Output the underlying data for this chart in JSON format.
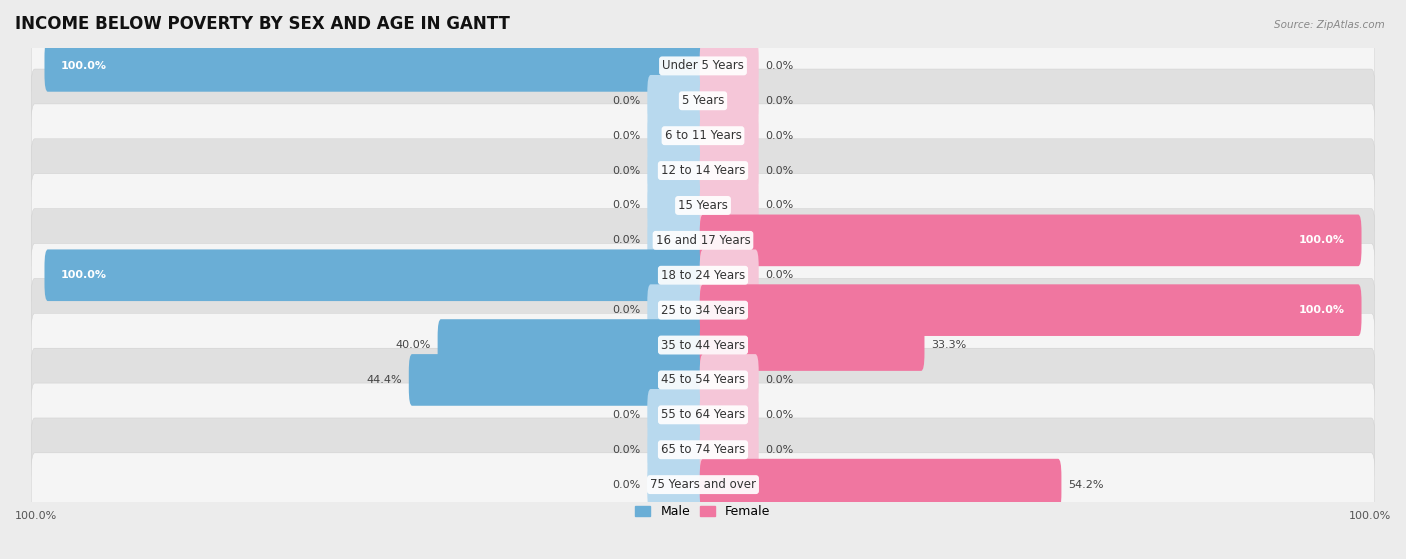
{
  "title": "INCOME BELOW POVERTY BY SEX AND AGE IN GANTT",
  "source": "Source: ZipAtlas.com",
  "categories": [
    "Under 5 Years",
    "5 Years",
    "6 to 11 Years",
    "12 to 14 Years",
    "15 Years",
    "16 and 17 Years",
    "18 to 24 Years",
    "25 to 34 Years",
    "35 to 44 Years",
    "45 to 54 Years",
    "55 to 64 Years",
    "65 to 74 Years",
    "75 Years and over"
  ],
  "male": [
    100.0,
    0.0,
    0.0,
    0.0,
    0.0,
    0.0,
    100.0,
    0.0,
    40.0,
    44.4,
    0.0,
    0.0,
    0.0
  ],
  "female": [
    0.0,
    0.0,
    0.0,
    0.0,
    0.0,
    100.0,
    0.0,
    100.0,
    33.3,
    0.0,
    0.0,
    0.0,
    54.2
  ],
  "male_color": "#6aaed6",
  "female_color_light": "#f4b8cc",
  "female_color": "#f076a0",
  "male_label": "Male",
  "female_label": "Female",
  "bg_color": "#ececec",
  "row_bg_light": "#f5f5f5",
  "row_bg_dark": "#e0e0e0",
  "title_fontsize": 12,
  "label_fontsize": 8.5,
  "value_fontsize": 8.0,
  "stub_size": 8.0,
  "axis_label_bottom_left": "100.0%",
  "axis_label_bottom_right": "100.0%"
}
